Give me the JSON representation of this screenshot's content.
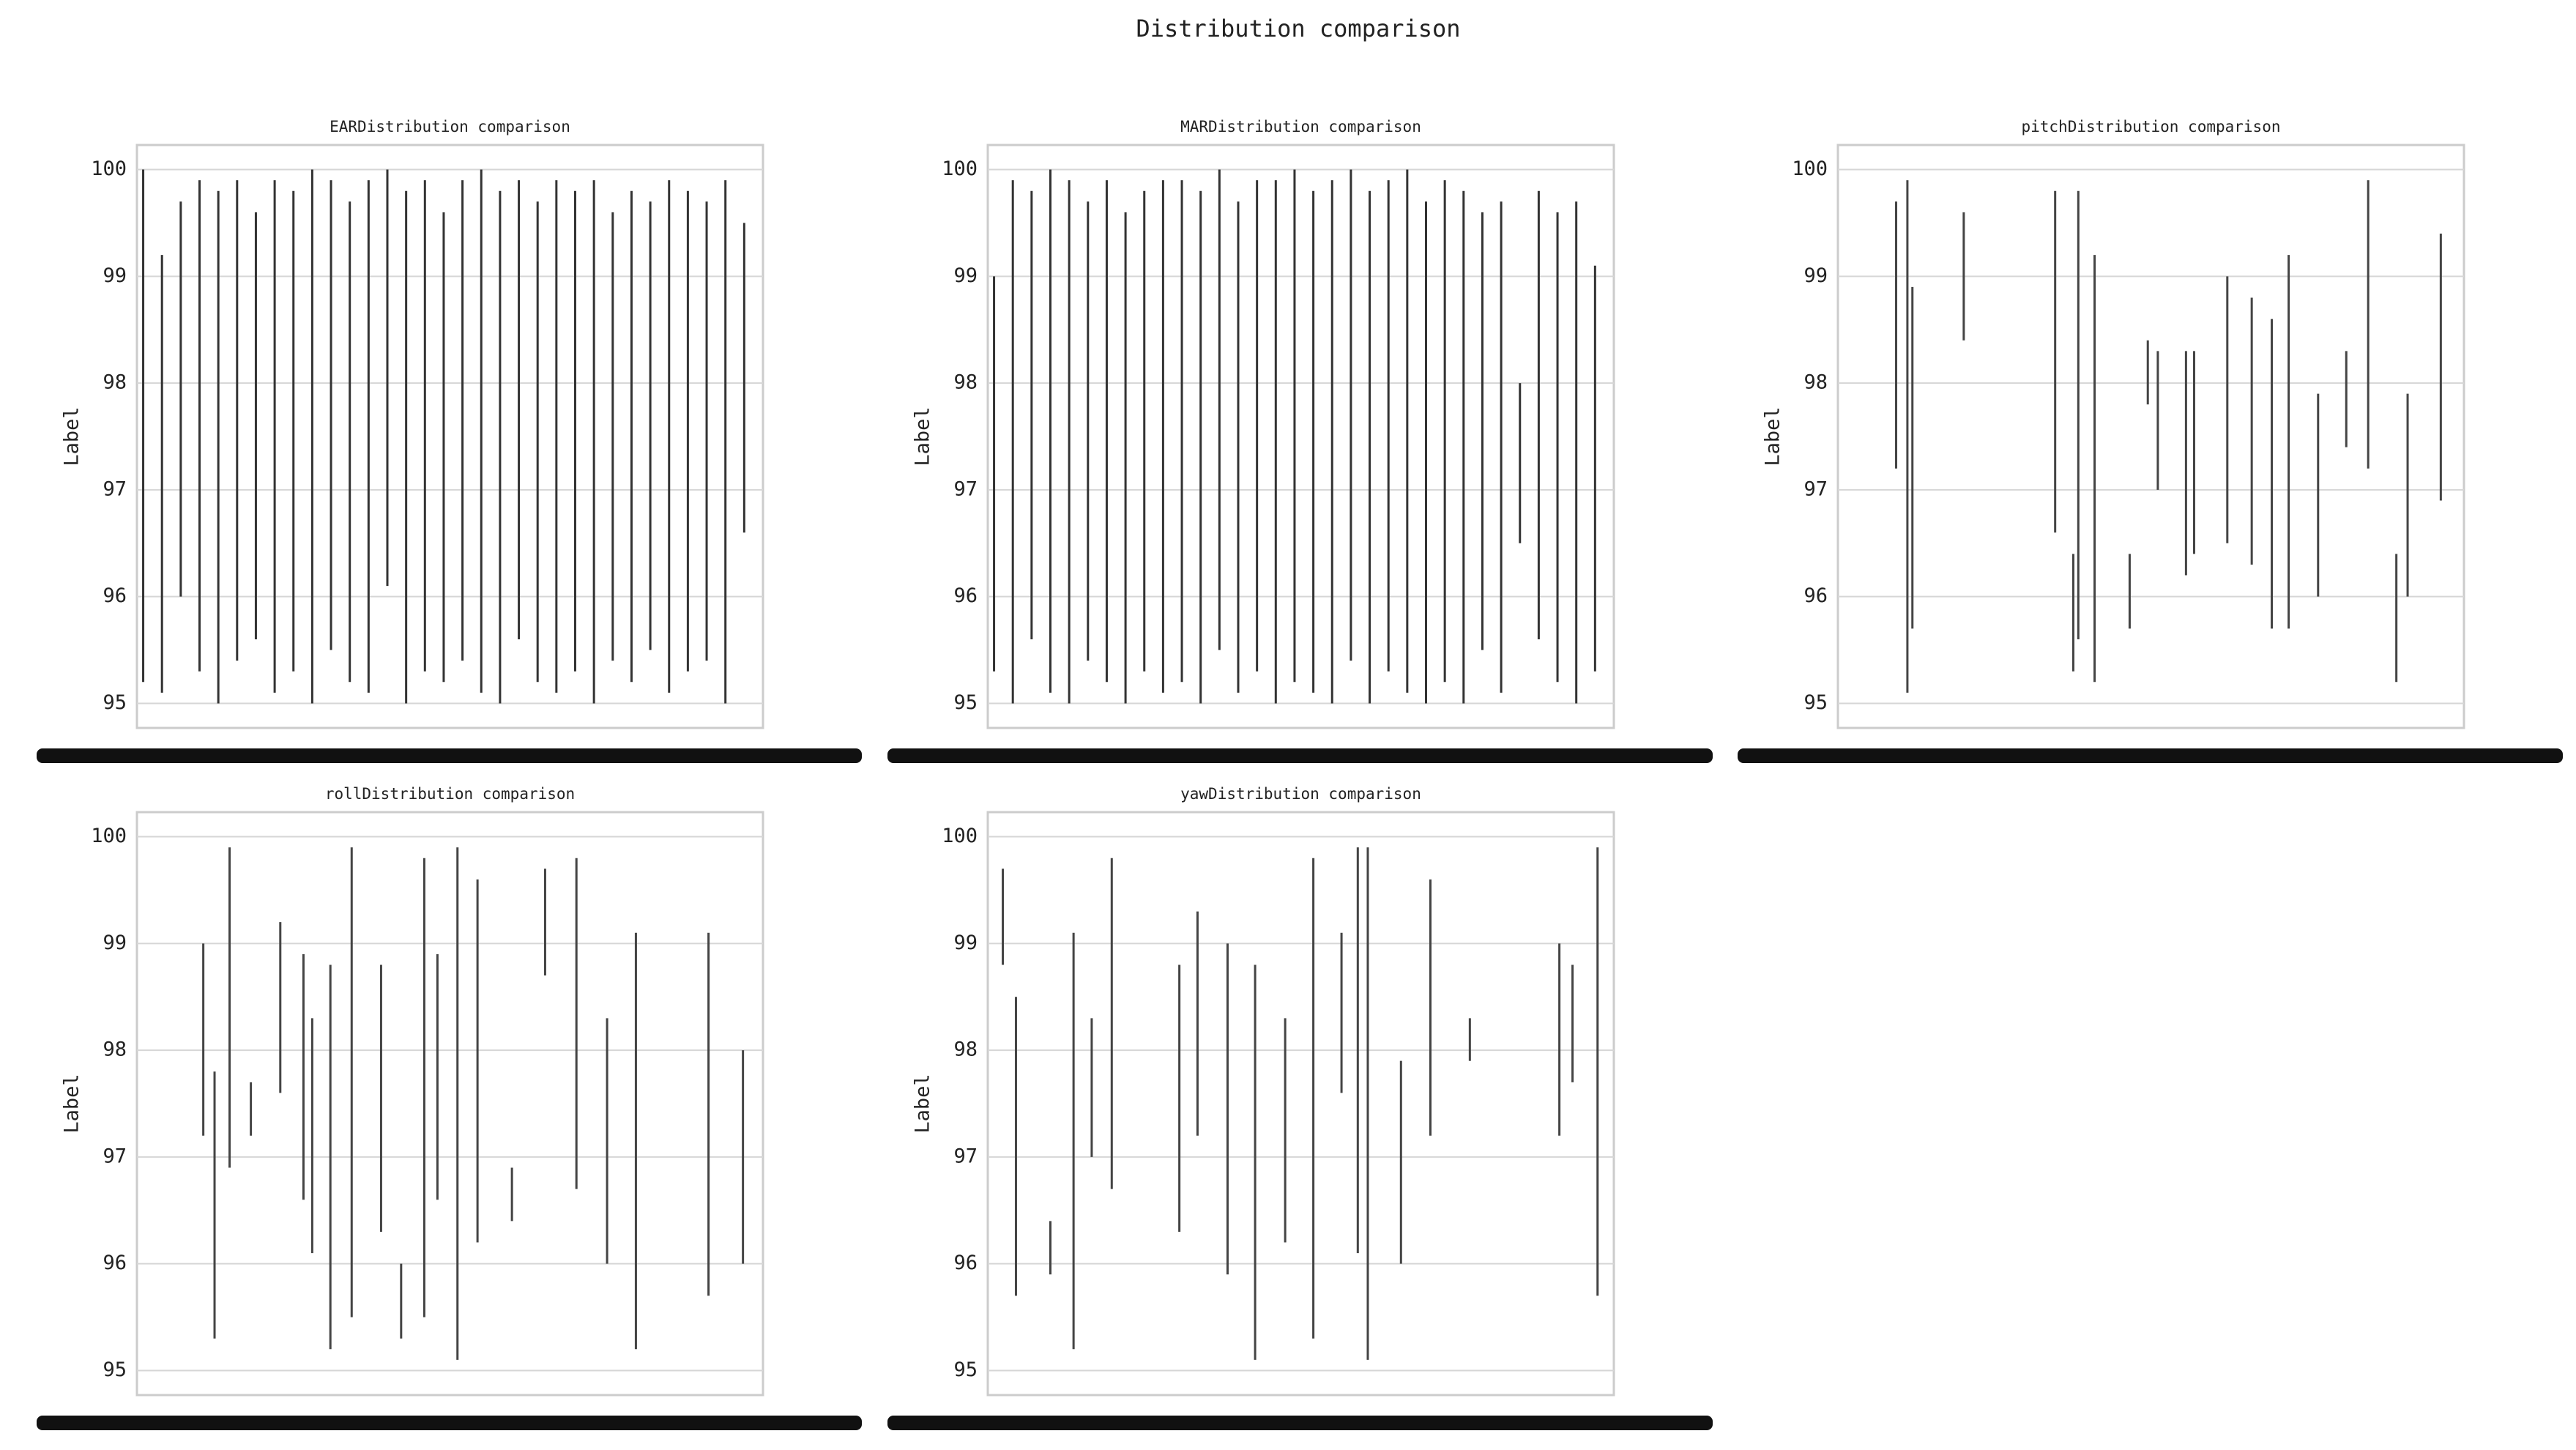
{
  "title": "Distribution comparison",
  "chart_data": [
    {
      "type": "strip",
      "title": "EARDistribution comparison",
      "y_label": "Label",
      "ylim": [
        94.77,
        100.23
      ],
      "yticks": [
        95,
        96,
        97,
        98,
        99,
        100
      ],
      "xlim": [
        0,
        100
      ],
      "grid": true,
      "color": "#333333",
      "x": [
        1,
        4,
        7,
        10,
        13,
        16,
        19,
        22,
        25,
        28,
        31,
        34,
        37,
        40,
        43,
        46,
        49,
        52,
        55,
        58,
        61,
        64,
        67,
        70,
        73,
        76,
        79,
        82,
        85,
        88,
        91,
        94,
        97
      ],
      "low": [
        95.2,
        95.1,
        96.0,
        95.3,
        95.0,
        95.4,
        95.6,
        95.1,
        95.3,
        95.0,
        95.5,
        95.2,
        95.1,
        96.1,
        95.0,
        95.3,
        95.2,
        95.4,
        95.1,
        95.0,
        95.6,
        95.2,
        95.1,
        95.3,
        95.0,
        95.4,
        95.2,
        95.5,
        95.1,
        95.3,
        95.4,
        95.0,
        96.6
      ],
      "high": [
        100.0,
        99.2,
        99.7,
        99.9,
        99.8,
        99.9,
        99.6,
        99.9,
        99.8,
        100.0,
        99.9,
        99.7,
        99.9,
        100.0,
        99.8,
        99.9,
        99.6,
        99.9,
        100.0,
        99.8,
        99.9,
        99.7,
        99.9,
        99.8,
        99.9,
        99.6,
        99.8,
        99.7,
        99.9,
        99.8,
        99.7,
        99.9,
        99.5
      ]
    },
    {
      "type": "strip",
      "title": "MARDistribution comparison",
      "y_label": "Label",
      "ylim": [
        94.77,
        100.23
      ],
      "yticks": [
        95,
        96,
        97,
        98,
        99,
        100
      ],
      "xlim": [
        0,
        100
      ],
      "grid": true,
      "color": "#333333",
      "x": [
        1,
        4,
        7,
        10,
        13,
        16,
        19,
        22,
        25,
        28,
        31,
        34,
        37,
        40,
        43,
        46,
        49,
        52,
        55,
        58,
        61,
        64,
        67,
        70,
        73,
        76,
        79,
        82,
        85,
        88,
        91,
        94,
        97
      ],
      "low": [
        95.3,
        95.0,
        95.6,
        95.1,
        95.0,
        95.4,
        95.2,
        95.0,
        95.3,
        95.1,
        95.2,
        95.0,
        95.5,
        95.1,
        95.3,
        95.0,
        95.2,
        95.1,
        95.0,
        95.4,
        95.0,
        95.3,
        95.1,
        95.0,
        95.2,
        95.0,
        95.5,
        95.1,
        96.5,
        95.6,
        95.2,
        95.0,
        95.3
      ],
      "high": [
        99.0,
        99.9,
        99.8,
        100.0,
        99.9,
        99.7,
        99.9,
        99.6,
        99.8,
        99.9,
        99.9,
        99.8,
        100.0,
        99.7,
        99.9,
        99.9,
        100.0,
        99.8,
        99.9,
        100.0,
        99.8,
        99.9,
        100.0,
        99.7,
        99.9,
        99.8,
        99.6,
        99.7,
        98.0,
        99.8,
        99.6,
        99.7,
        99.1
      ]
    },
    {
      "type": "strip",
      "title": "pitchDistribution comparison",
      "y_label": "Label",
      "ylim": [
        94.77,
        100.23
      ],
      "yticks": [
        95,
        96,
        97,
        98,
        99,
        100
      ],
      "xlim": [
        0,
        100
      ],
      "grid": true,
      "color": "#444444",
      "x": [
        9.3,
        11.1,
        11.9,
        20.1,
        34.7,
        37.6,
        38.4,
        41,
        46.6,
        49.5,
        51.1,
        55.6,
        56.9,
        62.2,
        66.1,
        69.3,
        72,
        76.7,
        81.2,
        84.7,
        89.2,
        91,
        96.3
      ],
      "low": [
        97.2,
        95.1,
        95.7,
        98.4,
        96.6,
        95.3,
        95.6,
        95.2,
        95.7,
        97.8,
        97.0,
        96.2,
        96.4,
        96.5,
        96.3,
        95.7,
        95.7,
        96.0,
        97.4,
        97.2,
        95.2,
        96.0,
        96.9
      ],
      "high": [
        99.7,
        99.9,
        98.9,
        99.6,
        99.8,
        96.4,
        99.8,
        99.2,
        96.4,
        98.4,
        98.3,
        98.3,
        98.3,
        99.0,
        98.8,
        98.6,
        99.2,
        97.9,
        98.3,
        99.9,
        96.4,
        97.9,
        99.4
      ]
    },
    {
      "type": "strip",
      "title": "rollDistribution comparison",
      "y_label": "Label",
      "ylim": [
        94.77,
        100.23
      ],
      "yticks": [
        95,
        96,
        97,
        98,
        99,
        100
      ],
      "xlim": [
        0,
        100
      ],
      "grid": true,
      "color": "#444444",
      "x": [
        10.6,
        12.4,
        14.8,
        18.2,
        22.9,
        26.6,
        28,
        30.9,
        34.3,
        39,
        42.2,
        45.9,
        48,
        51.2,
        54.4,
        59.9,
        65.2,
        70.2,
        75.1,
        79.7,
        91.3,
        96.8
      ],
      "low": [
        97.2,
        95.3,
        96.9,
        97.2,
        97.6,
        96.6,
        96.1,
        95.2,
        95.5,
        96.3,
        95.3,
        95.5,
        96.6,
        95.1,
        96.2,
        96.4,
        98.7,
        96.7,
        96.0,
        95.2,
        95.7,
        96.0
      ],
      "high": [
        99.0,
        97.8,
        99.9,
        97.7,
        99.2,
        98.9,
        98.3,
        98.8,
        99.9,
        98.8,
        96.0,
        99.8,
        98.9,
        99.9,
        99.6,
        96.9,
        99.7,
        99.8,
        98.3,
        99.1,
        99.1,
        98.0
      ]
    },
    {
      "type": "strip",
      "title": "yawDistribution comparison",
      "y_label": "Label",
      "ylim": [
        94.77,
        100.23
      ],
      "yticks": [
        95,
        96,
        97,
        98,
        99,
        100
      ],
      "xlim": [
        0,
        100
      ],
      "grid": true,
      "color": "#444444",
      "x": [
        2.4,
        4.5,
        10,
        13.7,
        16.6,
        19.8,
        30.6,
        33.5,
        38.3,
        42.7,
        47.5,
        52,
        56.5,
        59.1,
        60.7,
        66,
        70.7,
        77,
        91.3,
        93.4,
        97.4
      ],
      "low": [
        98.8,
        95.7,
        95.9,
        95.2,
        97.0,
        96.7,
        96.3,
        97.2,
        95.9,
        95.1,
        96.2,
        95.3,
        97.6,
        96.1,
        95.1,
        96.0,
        97.2,
        97.9,
        97.2,
        97.7,
        95.7
      ],
      "high": [
        99.7,
        98.5,
        96.4,
        99.1,
        98.3,
        99.8,
        98.8,
        99.3,
        99.0,
        98.8,
        98.3,
        99.8,
        99.1,
        99.9,
        99.9,
        97.9,
        99.6,
        98.3,
        99.0,
        98.8,
        99.9
      ]
    }
  ]
}
